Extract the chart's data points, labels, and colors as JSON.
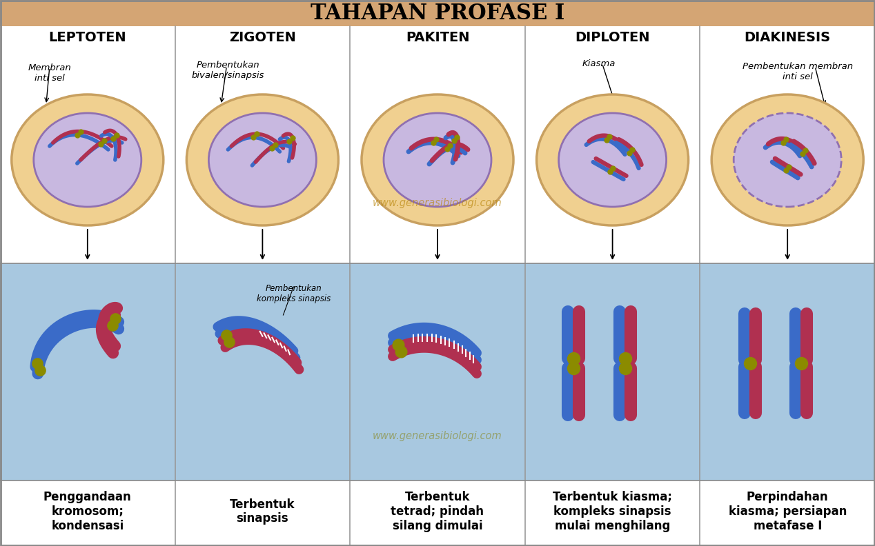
{
  "title": "TAHAPAN PROFASE I",
  "title_bg": "#D4A574",
  "title_fontsize": 22,
  "stage_names": [
    "LEPTOTEN",
    "ZIGOTEN",
    "PAKITEN",
    "DIPLOTEN",
    "DIAKINESIS"
  ],
  "bottom_labels": [
    "Penggandaan\nkromosom;\nkondensasi",
    "Terbentuk\nsinapsis",
    "Terbentuk\ntetrad; pindah\nsilang dimulai",
    "Terbentuk kiasma;\nkompleks sinapsis\nmulai menghilang",
    "Perpindahan\nkiasma; persiapan\nmetafase I"
  ],
  "cell_outer_color": "#F0D090",
  "cell_inner_color": "#C8B8E0",
  "cell_outer_edge": "#C8A060",
  "cell_inner_edge": "#9070B0",
  "watermark": "www.generasibiologi.com",
  "blue_chrom": "#3A6BC8",
  "red_chrom": "#B03050",
  "centromere_color": "#8B8B00",
  "bottom_bg": "#A8C8E0",
  "top_bg": "#FFFFFF",
  "border_color": "#888888"
}
